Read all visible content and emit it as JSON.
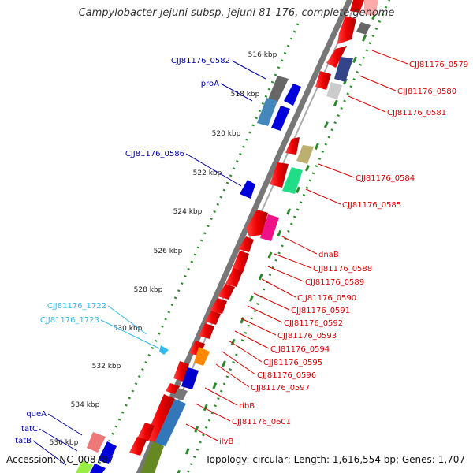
{
  "title": "Campylobacter jejuni subsp. jejuni 81-176, complete genome",
  "footer": {
    "accession": "Accession: NC_008787",
    "topology": "Topology: circular; Length: 1,616,554 bp; Genes: 1,707"
  },
  "ticks": [
    "516 kbp",
    "518 kbp",
    "520 kbp",
    "522 kbp",
    "524 kbp",
    "526 kbp",
    "528 kbp",
    "530 kbp",
    "532 kbp",
    "534 kbp",
    "536 kbp"
  ],
  "gene_labels_left": [
    {
      "name": "CJJ81176_0582",
      "color": "#0000aa"
    },
    {
      "name": "proA",
      "color": "#0000aa"
    },
    {
      "name": "CJJ81176_0586",
      "color": "#0000aa"
    },
    {
      "name": "CJJ81176_1722",
      "color": "#33bbee"
    },
    {
      "name": "CJJ81176_1723",
      "color": "#33bbee"
    },
    {
      "name": "queA",
      "color": "#0000aa"
    },
    {
      "name": "tatC",
      "color": "#0000aa"
    },
    {
      "name": "tatB",
      "color": "#0000aa"
    }
  ],
  "gene_labels_right": [
    "CJJ81176_0579",
    "CJJ81176_0580",
    "CJJ81176_0581",
    "CJJ81176_0584",
    "CJJ81176_0585",
    "dnaB",
    "CJJ81176_0588",
    "CJJ81176_0589",
    "CJJ81176_0590",
    "CJJ81176_0591",
    "CJJ81176_0592",
    "CJJ81176_0593",
    "CJJ81176_0594",
    "CJJ81176_0595",
    "CJJ81176_0596",
    "CJJ81176_0597",
    "ribB",
    "CJJ81176_0601",
    "ilvB"
  ],
  "colors": {
    "label_right": "#dd0000",
    "backbone": "#888888",
    "dots": "#228822"
  }
}
